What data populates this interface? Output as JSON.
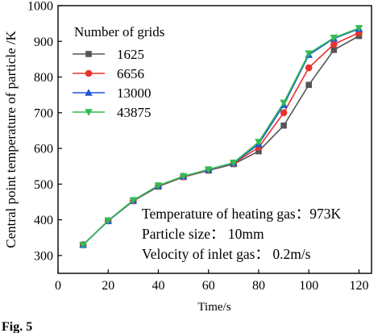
{
  "chart_data": {
    "type": "line",
    "ylabel": "Central point temperature of particle /K",
    "xlabel": "Time/s",
    "xlim": [
      0,
      125
    ],
    "ylim": [
      250,
      1000
    ],
    "xticks": [
      "0",
      "20",
      "40",
      "60",
      "80",
      "100",
      "120"
    ],
    "yticks": [
      "300",
      "400",
      "500",
      "600",
      "700",
      "800",
      "900",
      "1000"
    ],
    "grid": false,
    "legend": {
      "title": "Number of grids",
      "position": "top-left"
    },
    "x": [
      10,
      20,
      30,
      40,
      50,
      60,
      70,
      80,
      90,
      100,
      110,
      120
    ],
    "series": [
      {
        "name": "1625",
        "color": "#555555",
        "marker": "square",
        "values": [
          330,
          397,
          453,
          493,
          520,
          538,
          556,
          592,
          664,
          778,
          876,
          915
        ]
      },
      {
        "name": "6656",
        "color": "#e8332c",
        "marker": "circle",
        "values": [
          330,
          397,
          453,
          494,
          521,
          539,
          558,
          603,
          700,
          826,
          892,
          924
        ]
      },
      {
        "name": "13000",
        "color": "#1f56d8",
        "marker": "triangle-up",
        "values": [
          330,
          397,
          454,
          495,
          522,
          540,
          559,
          612,
          722,
          862,
          908,
          935
        ]
      },
      {
        "name": "43875",
        "color": "#2ebd4e",
        "marker": "triangle-down",
        "values": [
          329,
          398,
          455,
          496,
          522,
          541,
          560,
          618,
          728,
          866,
          910,
          937
        ]
      }
    ],
    "annotations": [
      "Temperature of heating gas：973K",
      "Particle size： 10mm",
      "Velocity of inlet gas： 0.2m/s"
    ]
  },
  "caption": "Fig. 5"
}
